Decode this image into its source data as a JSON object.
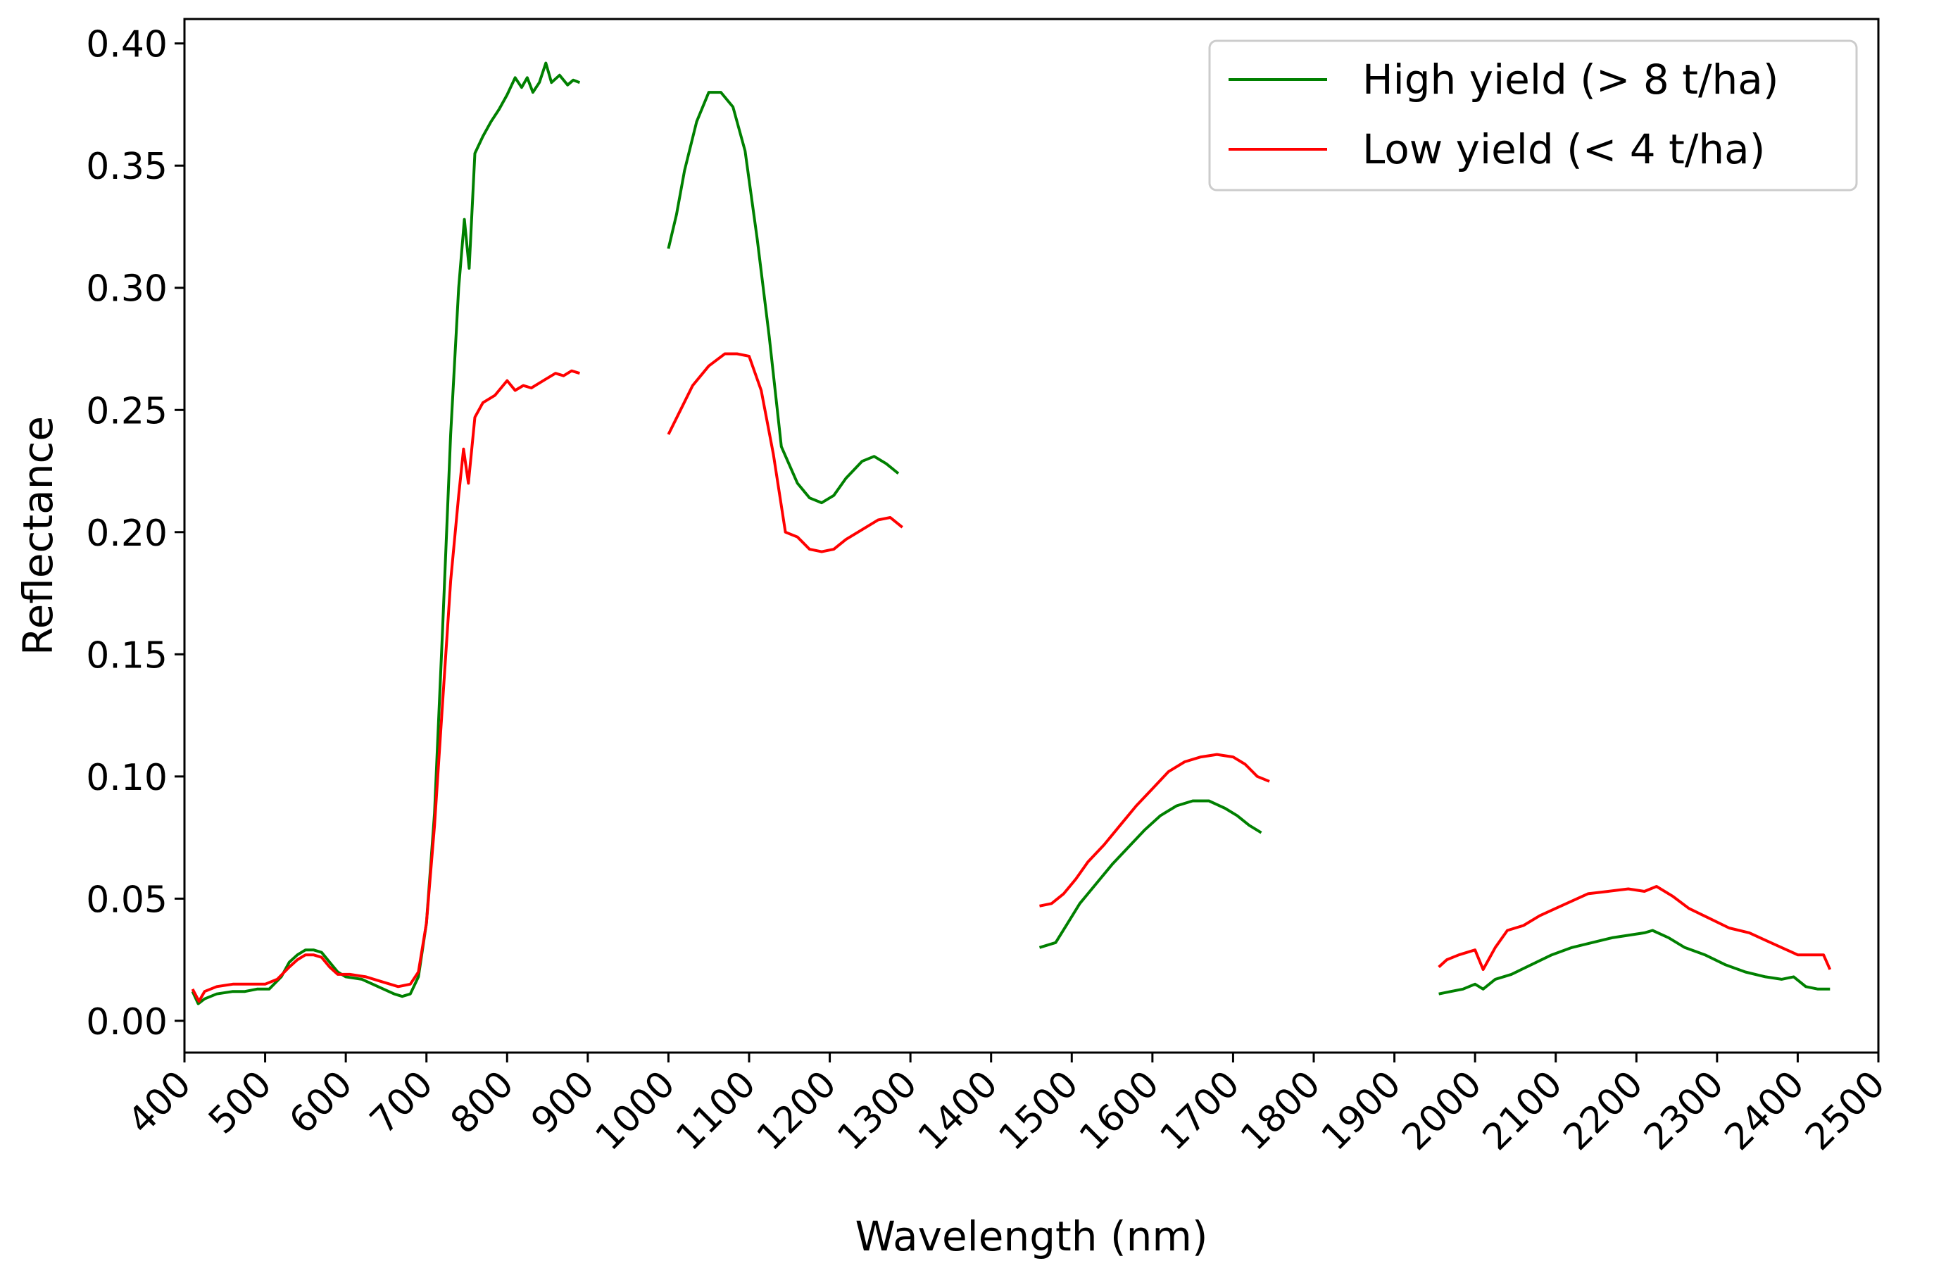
{
  "chart_data": {
    "type": "line",
    "title": "",
    "xlabel": "Wavelength (nm)",
    "ylabel": "Reflectance",
    "xlim": [
      400,
      2500
    ],
    "ylim": [
      -0.013,
      0.41
    ],
    "x_ticks": [
      400,
      500,
      600,
      700,
      800,
      900,
      1000,
      1100,
      1200,
      1300,
      1400,
      1500,
      1600,
      1700,
      1800,
      1900,
      2000,
      2100,
      2200,
      2300,
      2400,
      2500
    ],
    "x_tick_labels": [
      "400",
      "500",
      "600",
      "700",
      "800",
      "900",
      "1000",
      "1100",
      "1200",
      "1300",
      "1400",
      "1500",
      "1600",
      "1700",
      "1800",
      "1900",
      "2000",
      "2100",
      "2200",
      "2300",
      "2400",
      "2500"
    ],
    "y_ticks": [
      0.0,
      0.05,
      0.1,
      0.15,
      0.2,
      0.25,
      0.3,
      0.35,
      0.4
    ],
    "y_tick_labels": [
      "0.00",
      "0.05",
      "0.10",
      "0.15",
      "0.20",
      "0.25",
      "0.30",
      "0.35",
      "0.40"
    ],
    "grid": false,
    "legend_position": "top-right",
    "series": [
      {
        "name": "High yield (> 8 t/ha)",
        "color": "#008000",
        "segments": [
          [
            [
              410,
              0.012
            ],
            [
              417,
              0.007
            ],
            [
              425,
              0.009
            ],
            [
              440,
              0.011
            ],
            [
              460,
              0.012
            ],
            [
              475,
              0.012
            ],
            [
              490,
              0.013
            ],
            [
              505,
              0.013
            ],
            [
              520,
              0.018
            ],
            [
              530,
              0.024
            ],
            [
              540,
              0.027
            ],
            [
              550,
              0.029
            ],
            [
              560,
              0.029
            ],
            [
              570,
              0.028
            ],
            [
              580,
              0.024
            ],
            [
              590,
              0.02
            ],
            [
              600,
              0.018
            ],
            [
              620,
              0.017
            ],
            [
              640,
              0.014
            ],
            [
              660,
              0.011
            ],
            [
              670,
              0.01
            ],
            [
              680,
              0.011
            ],
            [
              690,
              0.018
            ],
            [
              700,
              0.04
            ],
            [
              710,
              0.085
            ],
            [
              720,
              0.16
            ],
            [
              730,
              0.24
            ],
            [
              740,
              0.3
            ],
            [
              747,
              0.328
            ],
            [
              753,
              0.308
            ],
            [
              760,
              0.355
            ],
            [
              770,
              0.362
            ],
            [
              780,
              0.368
            ],
            [
              790,
              0.373
            ],
            [
              800,
              0.379
            ],
            [
              810,
              0.386
            ],
            [
              818,
              0.382
            ],
            [
              825,
              0.386
            ],
            [
              832,
              0.38
            ],
            [
              840,
              0.384
            ],
            [
              848,
              0.392
            ],
            [
              855,
              0.384
            ],
            [
              865,
              0.387
            ],
            [
              875,
              0.383
            ],
            [
              882,
              0.385
            ],
            [
              890,
              0.384
            ]
          ],
          [
            [
              1000,
              0.316
            ],
            [
              1010,
              0.33
            ],
            [
              1020,
              0.348
            ],
            [
              1035,
              0.368
            ],
            [
              1050,
              0.38
            ],
            [
              1065,
              0.38
            ],
            [
              1080,
              0.374
            ],
            [
              1095,
              0.356
            ],
            [
              1110,
              0.32
            ],
            [
              1125,
              0.28
            ],
            [
              1140,
              0.235
            ],
            [
              1160,
              0.22
            ],
            [
              1175,
              0.214
            ],
            [
              1190,
              0.212
            ],
            [
              1205,
              0.215
            ],
            [
              1220,
              0.222
            ],
            [
              1240,
              0.229
            ],
            [
              1255,
              0.231
            ],
            [
              1270,
              0.228
            ],
            [
              1285,
              0.224
            ]
          ],
          [
            [
              1460,
              0.03
            ],
            [
              1480,
              0.032
            ],
            [
              1495,
              0.04
            ],
            [
              1510,
              0.048
            ],
            [
              1530,
              0.056
            ],
            [
              1550,
              0.064
            ],
            [
              1570,
              0.071
            ],
            [
              1590,
              0.078
            ],
            [
              1610,
              0.084
            ],
            [
              1630,
              0.088
            ],
            [
              1650,
              0.09
            ],
            [
              1670,
              0.09
            ],
            [
              1690,
              0.087
            ],
            [
              1705,
              0.084
            ],
            [
              1720,
              0.08
            ],
            [
              1735,
              0.077
            ]
          ],
          [
            [
              1955,
              0.011
            ],
            [
              1970,
              0.012
            ],
            [
              1985,
              0.013
            ],
            [
              2000,
              0.015
            ],
            [
              2010,
              0.013
            ],
            [
              2025,
              0.017
            ],
            [
              2045,
              0.019
            ],
            [
              2070,
              0.023
            ],
            [
              2095,
              0.027
            ],
            [
              2120,
              0.03
            ],
            [
              2145,
              0.032
            ],
            [
              2170,
              0.034
            ],
            [
              2190,
              0.035
            ],
            [
              2210,
              0.036
            ],
            [
              2220,
              0.037
            ],
            [
              2240,
              0.034
            ],
            [
              2260,
              0.03
            ],
            [
              2285,
              0.027
            ],
            [
              2310,
              0.023
            ],
            [
              2335,
              0.02
            ],
            [
              2360,
              0.018
            ],
            [
              2380,
              0.017
            ],
            [
              2395,
              0.018
            ],
            [
              2410,
              0.014
            ],
            [
              2425,
              0.013
            ],
            [
              2440,
              0.013
            ]
          ]
        ]
      },
      {
        "name": "Low yield (< 4 t/ha)",
        "color": "#ff0000",
        "segments": [
          [
            [
              410,
              0.013
            ],
            [
              418,
              0.008
            ],
            [
              425,
              0.012
            ],
            [
              440,
              0.014
            ],
            [
              460,
              0.015
            ],
            [
              480,
              0.015
            ],
            [
              500,
              0.015
            ],
            [
              515,
              0.017
            ],
            [
              530,
              0.022
            ],
            [
              540,
              0.025
            ],
            [
              550,
              0.027
            ],
            [
              560,
              0.027
            ],
            [
              570,
              0.026
            ],
            [
              580,
              0.022
            ],
            [
              590,
              0.019
            ],
            [
              605,
              0.019
            ],
            [
              625,
              0.018
            ],
            [
              645,
              0.016
            ],
            [
              665,
              0.014
            ],
            [
              680,
              0.015
            ],
            [
              690,
              0.02
            ],
            [
              700,
              0.04
            ],
            [
              710,
              0.08
            ],
            [
              720,
              0.13
            ],
            [
              730,
              0.18
            ],
            [
              740,
              0.215
            ],
            [
              746,
              0.234
            ],
            [
              752,
              0.22
            ],
            [
              760,
              0.247
            ],
            [
              770,
              0.253
            ],
            [
              785,
              0.256
            ],
            [
              800,
              0.262
            ],
            [
              810,
              0.258
            ],
            [
              820,
              0.26
            ],
            [
              830,
              0.259
            ],
            [
              845,
              0.262
            ],
            [
              860,
              0.265
            ],
            [
              870,
              0.264
            ],
            [
              880,
              0.266
            ],
            [
              890,
              0.265
            ]
          ],
          [
            [
              1000,
              0.24
            ],
            [
              1015,
              0.25
            ],
            [
              1030,
              0.26
            ],
            [
              1050,
              0.268
            ],
            [
              1070,
              0.273
            ],
            [
              1085,
              0.273
            ],
            [
              1100,
              0.272
            ],
            [
              1115,
              0.258
            ],
            [
              1130,
              0.232
            ],
            [
              1145,
              0.2
            ],
            [
              1160,
              0.198
            ],
            [
              1175,
              0.193
            ],
            [
              1190,
              0.192
            ],
            [
              1205,
              0.193
            ],
            [
              1220,
              0.197
            ],
            [
              1240,
              0.201
            ],
            [
              1260,
              0.205
            ],
            [
              1275,
              0.206
            ],
            [
              1290,
              0.202
            ]
          ],
          [
            [
              1460,
              0.047
            ],
            [
              1475,
              0.048
            ],
            [
              1490,
              0.052
            ],
            [
              1505,
              0.058
            ],
            [
              1520,
              0.065
            ],
            [
              1540,
              0.072
            ],
            [
              1560,
              0.08
            ],
            [
              1580,
              0.088
            ],
            [
              1600,
              0.095
            ],
            [
              1620,
              0.102
            ],
            [
              1640,
              0.106
            ],
            [
              1660,
              0.108
            ],
            [
              1680,
              0.109
            ],
            [
              1700,
              0.108
            ],
            [
              1715,
              0.105
            ],
            [
              1730,
              0.1
            ],
            [
              1745,
              0.098
            ]
          ],
          [
            [
              1955,
              0.022
            ],
            [
              1965,
              0.025
            ],
            [
              1980,
              0.027
            ],
            [
              2000,
              0.029
            ],
            [
              2010,
              0.021
            ],
            [
              2025,
              0.03
            ],
            [
              2040,
              0.037
            ],
            [
              2060,
              0.039
            ],
            [
              2080,
              0.043
            ],
            [
              2100,
              0.046
            ],
            [
              2120,
              0.049
            ],
            [
              2140,
              0.052
            ],
            [
              2165,
              0.053
            ],
            [
              2190,
              0.054
            ],
            [
              2210,
              0.053
            ],
            [
              2225,
              0.055
            ],
            [
              2245,
              0.051
            ],
            [
              2265,
              0.046
            ],
            [
              2290,
              0.042
            ],
            [
              2315,
              0.038
            ],
            [
              2340,
              0.036
            ],
            [
              2360,
              0.033
            ],
            [
              2380,
              0.03
            ],
            [
              2400,
              0.027
            ],
            [
              2420,
              0.027
            ],
            [
              2432,
              0.027
            ],
            [
              2440,
              0.021
            ]
          ]
        ]
      }
    ]
  }
}
